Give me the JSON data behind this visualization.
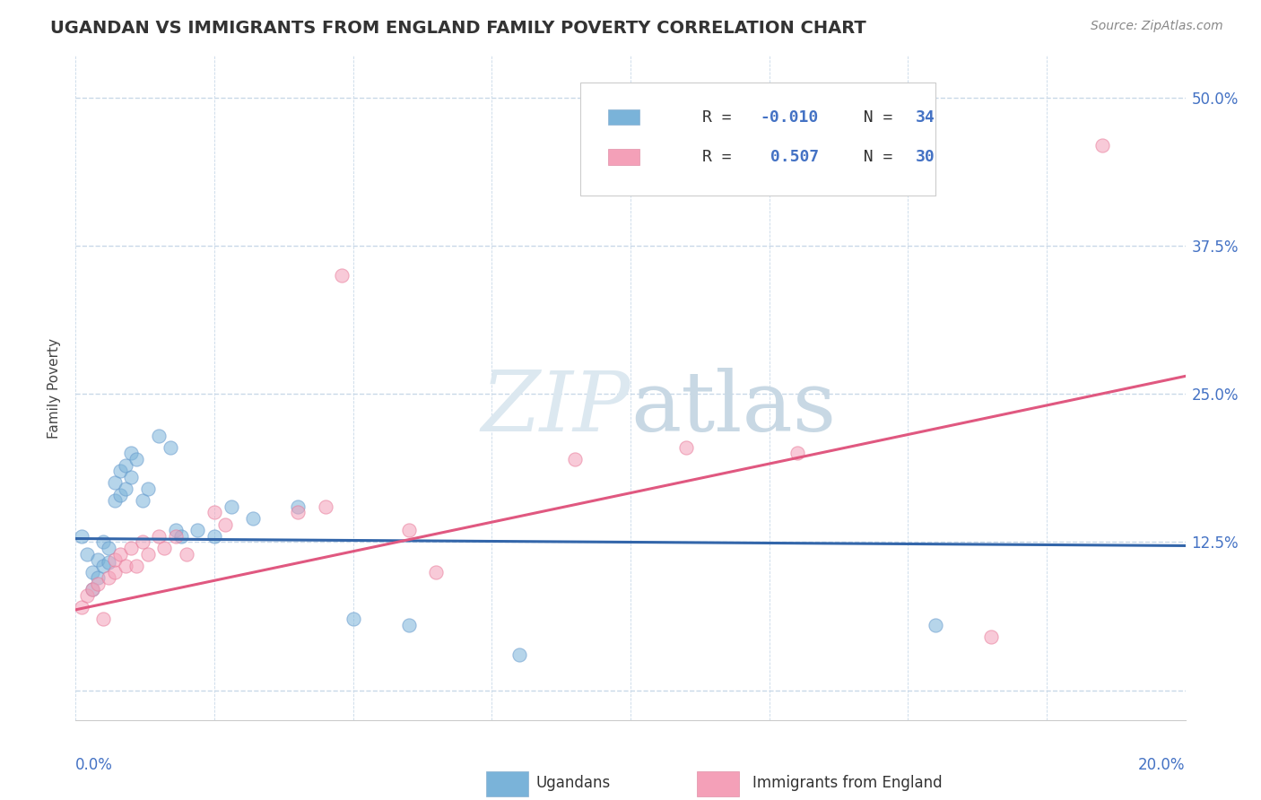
{
  "title": "UGANDAN VS IMMIGRANTS FROM ENGLAND FAMILY POVERTY CORRELATION CHART",
  "source": "Source: ZipAtlas.com",
  "ylabel": "Family Poverty",
  "yticks": [
    0.0,
    0.125,
    0.25,
    0.375,
    0.5
  ],
  "ytick_labels": [
    "",
    "12.5%",
    "25.0%",
    "37.5%",
    "50.0%"
  ],
  "xlim": [
    0.0,
    0.2
  ],
  "ylim": [
    -0.025,
    0.535
  ],
  "legend_R_blue": "R = -0.010",
  "legend_N_blue": "N = 34",
  "legend_R_pink": "R =  0.507",
  "legend_N_pink": "N = 30",
  "ugandan_x": [
    0.001,
    0.002,
    0.003,
    0.003,
    0.004,
    0.004,
    0.005,
    0.005,
    0.006,
    0.006,
    0.007,
    0.007,
    0.008,
    0.008,
    0.009,
    0.009,
    0.01,
    0.01,
    0.011,
    0.012,
    0.013,
    0.015,
    0.017,
    0.018,
    0.019,
    0.022,
    0.025,
    0.028,
    0.032,
    0.04,
    0.05,
    0.06,
    0.08,
    0.155
  ],
  "ugandan_y": [
    0.13,
    0.115,
    0.1,
    0.085,
    0.11,
    0.095,
    0.125,
    0.105,
    0.12,
    0.108,
    0.175,
    0.16,
    0.185,
    0.165,
    0.19,
    0.17,
    0.2,
    0.18,
    0.195,
    0.16,
    0.17,
    0.215,
    0.205,
    0.135,
    0.13,
    0.135,
    0.13,
    0.155,
    0.145,
    0.155,
    0.06,
    0.055,
    0.03,
    0.055
  ],
  "england_x": [
    0.001,
    0.002,
    0.003,
    0.004,
    0.005,
    0.006,
    0.007,
    0.007,
    0.008,
    0.009,
    0.01,
    0.011,
    0.012,
    0.013,
    0.015,
    0.016,
    0.018,
    0.02,
    0.025,
    0.027,
    0.04,
    0.045,
    0.048,
    0.06,
    0.065,
    0.09,
    0.11,
    0.13,
    0.165,
    0.185
  ],
  "england_y": [
    0.07,
    0.08,
    0.085,
    0.09,
    0.06,
    0.095,
    0.1,
    0.11,
    0.115,
    0.105,
    0.12,
    0.105,
    0.125,
    0.115,
    0.13,
    0.12,
    0.13,
    0.115,
    0.15,
    0.14,
    0.15,
    0.155,
    0.35,
    0.135,
    0.1,
    0.195,
    0.205,
    0.2,
    0.045,
    0.46
  ],
  "blue_dot_color": "#7ab3d9",
  "blue_dot_edge": "#6699cc",
  "pink_dot_color": "#f4a0b8",
  "pink_dot_edge": "#e87898",
  "blue_line_color": "#3366aa",
  "pink_line_color": "#e05880",
  "bg_color": "#ffffff",
  "grid_color": "#c8d8e8",
  "watermark_color_zip": "#c8d8e8",
  "watermark_color_atlas": "#c8d8e8",
  "dot_size": 120,
  "dot_alpha": 0.55,
  "title_fontsize": 14,
  "axis_label_fontsize": 11,
  "tick_fontsize": 12,
  "legend_fontsize": 13,
  "source_fontsize": 10
}
